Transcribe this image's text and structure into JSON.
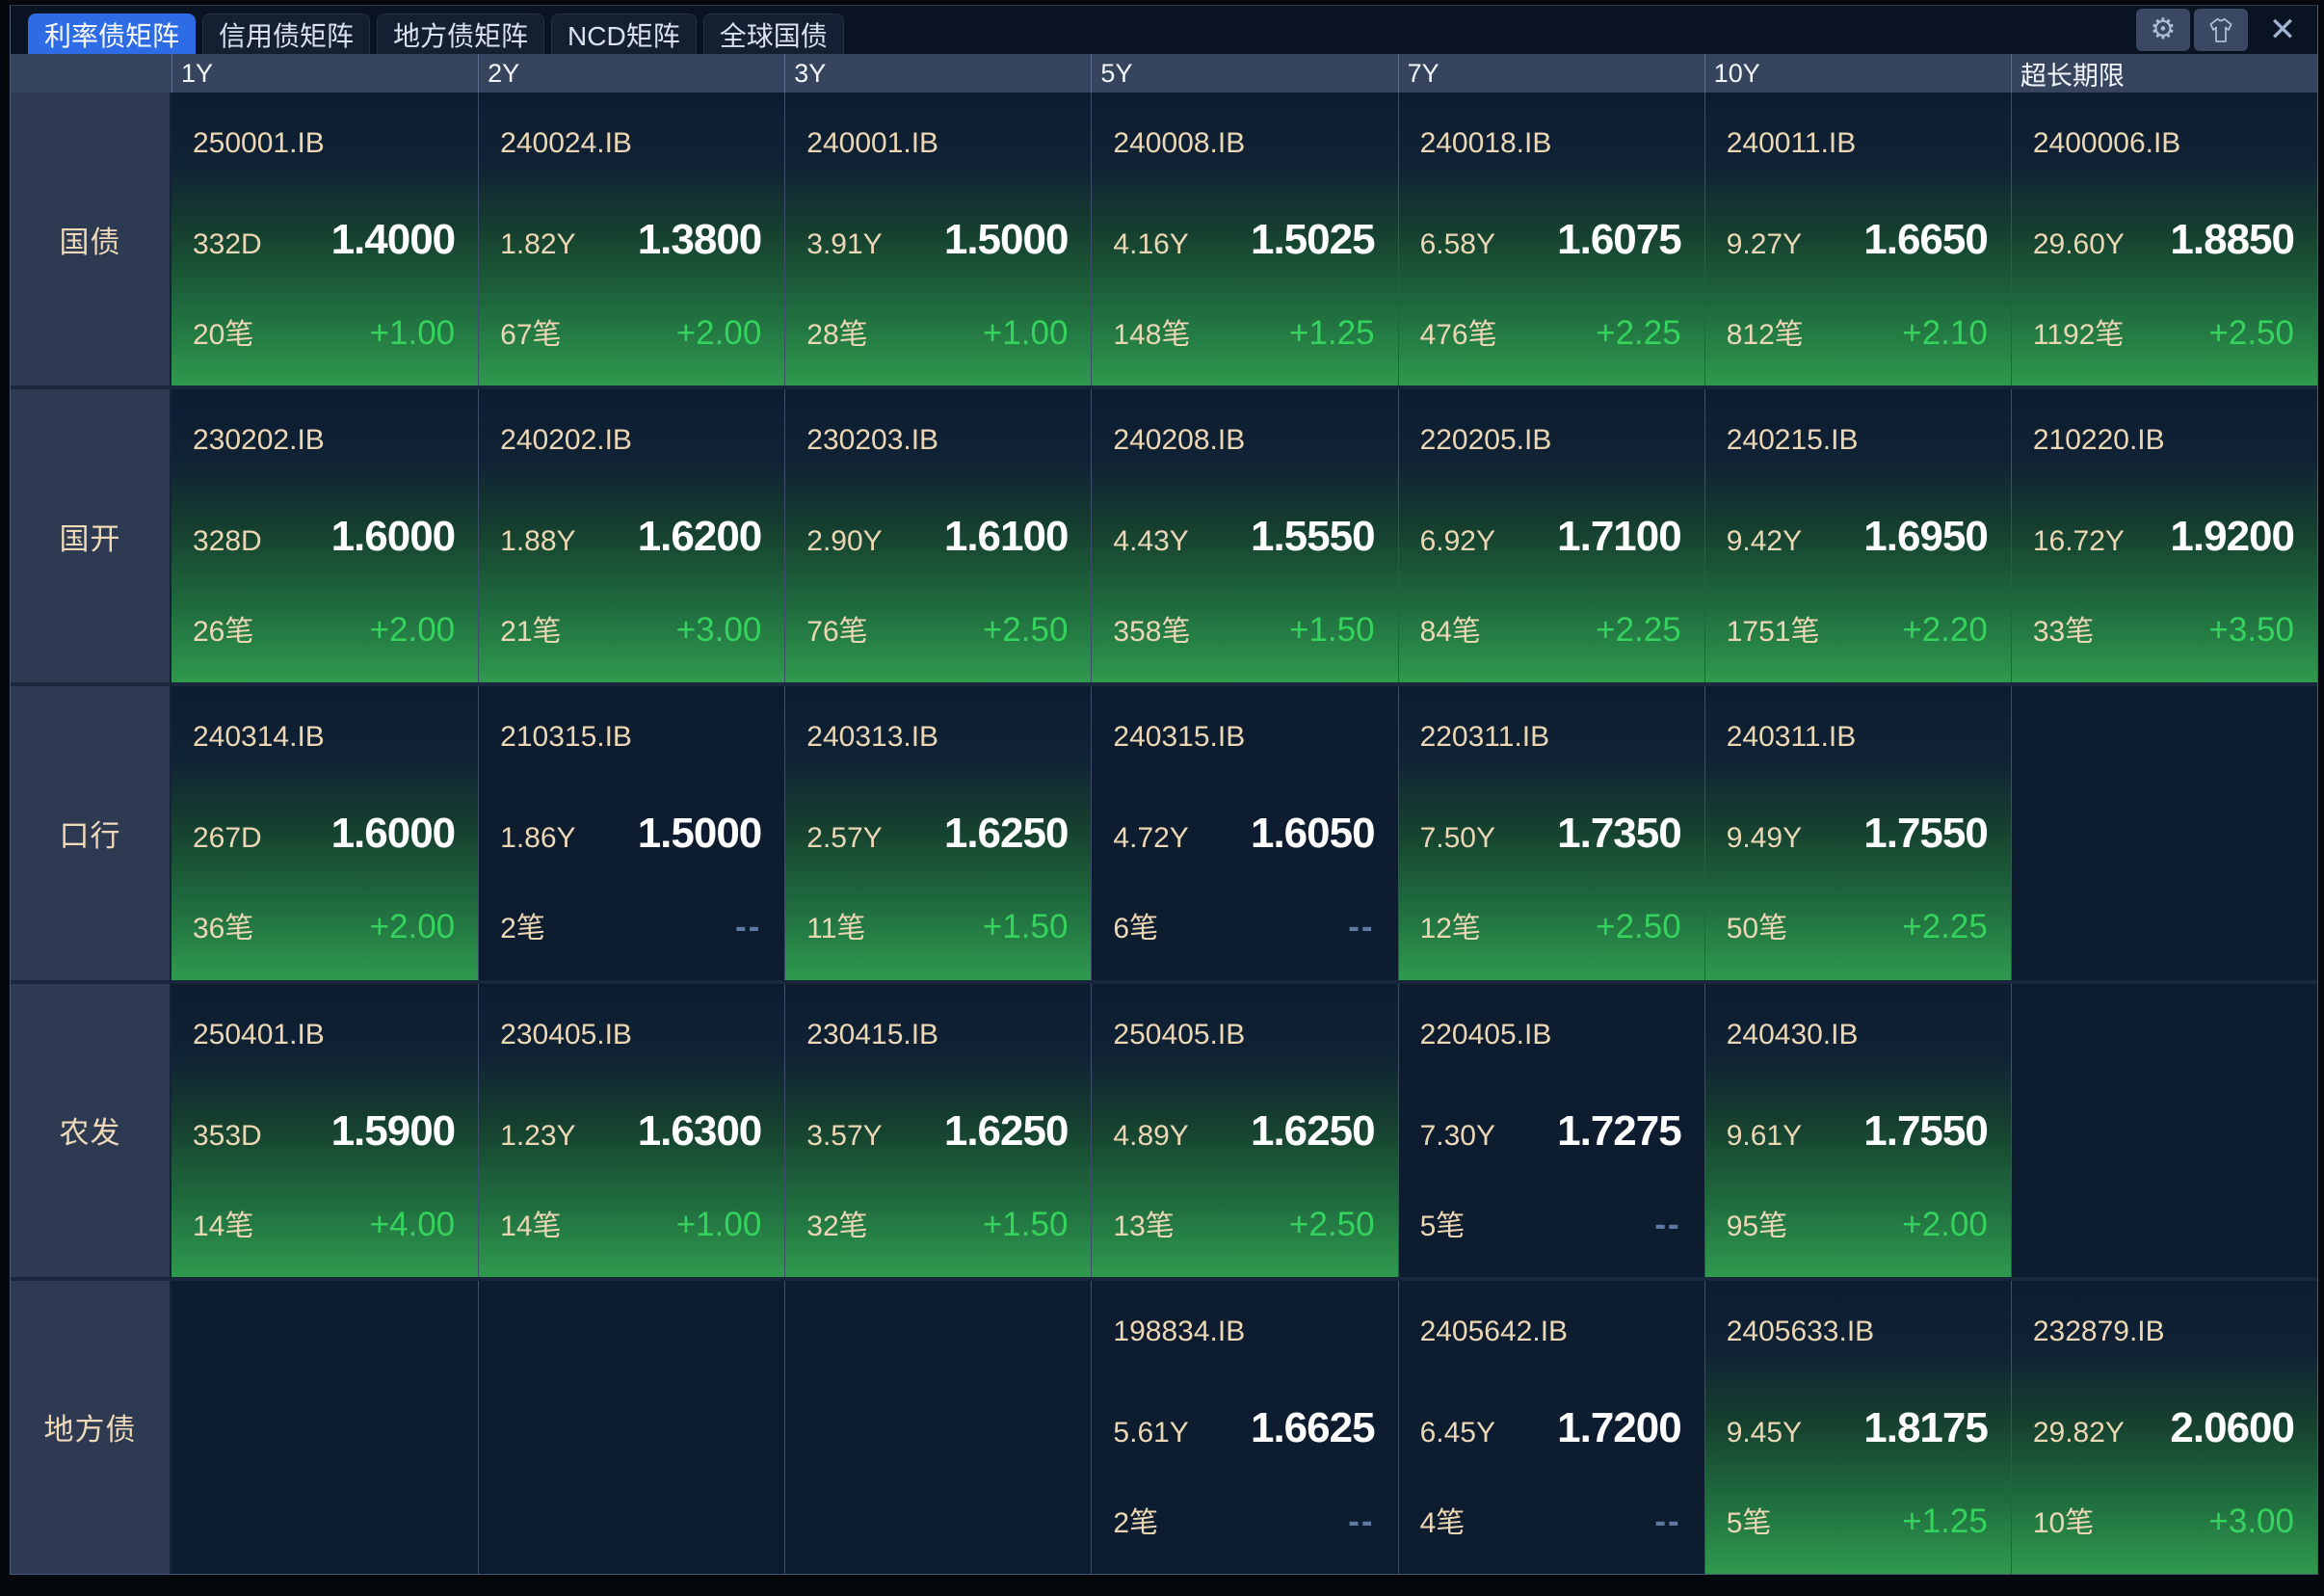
{
  "tab_bar": {
    "tabs": [
      {
        "label": "利率债矩阵",
        "active": true
      },
      {
        "label": "信用债矩阵",
        "active": false
      },
      {
        "label": "地方债矩阵",
        "active": false
      },
      {
        "label": "NCD矩阵",
        "active": false
      },
      {
        "label": "全球国债",
        "active": false
      }
    ],
    "icons": {
      "settings_glyph": "⚙",
      "close_glyph": "✕"
    }
  },
  "header": {
    "columns": [
      "1Y",
      "2Y",
      "3Y",
      "5Y",
      "7Y",
      "10Y",
      "超长期限"
    ]
  },
  "matrix": {
    "rows": [
      {
        "label": "国债",
        "cells": [
          {
            "code": "250001.IB",
            "tenor": "332D",
            "yield": "1.4000",
            "count": "20笔",
            "change": "+1.00"
          },
          {
            "code": "240024.IB",
            "tenor": "1.82Y",
            "yield": "1.3800",
            "count": "67笔",
            "change": "+2.00"
          },
          {
            "code": "240001.IB",
            "tenor": "3.91Y",
            "yield": "1.5000",
            "count": "28笔",
            "change": "+1.00"
          },
          {
            "code": "240008.IB",
            "tenor": "4.16Y",
            "yield": "1.5025",
            "count": "148笔",
            "change": "+1.25"
          },
          {
            "code": "240018.IB",
            "tenor": "6.58Y",
            "yield": "1.6075",
            "count": "476笔",
            "change": "+2.25"
          },
          {
            "code": "240011.IB",
            "tenor": "9.27Y",
            "yield": "1.6650",
            "count": "812笔",
            "change": "+2.10"
          },
          {
            "code": "2400006.IB",
            "tenor": "29.60Y",
            "yield": "1.8850",
            "count": "1192笔",
            "change": "+2.50"
          }
        ]
      },
      {
        "label": "国开",
        "cells": [
          {
            "code": "230202.IB",
            "tenor": "328D",
            "yield": "1.6000",
            "count": "26笔",
            "change": "+2.00"
          },
          {
            "code": "240202.IB",
            "tenor": "1.88Y",
            "yield": "1.6200",
            "count": "21笔",
            "change": "+3.00"
          },
          {
            "code": "230203.IB",
            "tenor": "2.90Y",
            "yield": "1.6100",
            "count": "76笔",
            "change": "+2.50"
          },
          {
            "code": "240208.IB",
            "tenor": "4.43Y",
            "yield": "1.5550",
            "count": "358笔",
            "change": "+1.50"
          },
          {
            "code": "220205.IB",
            "tenor": "6.92Y",
            "yield": "1.7100",
            "count": "84笔",
            "change": "+2.25"
          },
          {
            "code": "240215.IB",
            "tenor": "9.42Y",
            "yield": "1.6950",
            "count": "1751笔",
            "change": "+2.20"
          },
          {
            "code": "210220.IB",
            "tenor": "16.72Y",
            "yield": "1.9200",
            "count": "33笔",
            "change": "+3.50"
          }
        ]
      },
      {
        "label": "口行",
        "cells": [
          {
            "code": "240314.IB",
            "tenor": "267D",
            "yield": "1.6000",
            "count": "36笔",
            "change": "+2.00"
          },
          {
            "code": "210315.IB",
            "tenor": "1.86Y",
            "yield": "1.5000",
            "count": "2笔",
            "change": "--"
          },
          {
            "code": "240313.IB",
            "tenor": "2.57Y",
            "yield": "1.6250",
            "count": "11笔",
            "change": "+1.50"
          },
          {
            "code": "240315.IB",
            "tenor": "4.72Y",
            "yield": "1.6050",
            "count": "6笔",
            "change": "--"
          },
          {
            "code": "220311.IB",
            "tenor": "7.50Y",
            "yield": "1.7350",
            "count": "12笔",
            "change": "+2.50"
          },
          {
            "code": "240311.IB",
            "tenor": "9.49Y",
            "yield": "1.7550",
            "count": "50笔",
            "change": "+2.25"
          },
          null
        ]
      },
      {
        "label": "农发",
        "cells": [
          {
            "code": "250401.IB",
            "tenor": "353D",
            "yield": "1.5900",
            "count": "14笔",
            "change": "+4.00"
          },
          {
            "code": "230405.IB",
            "tenor": "1.23Y",
            "yield": "1.6300",
            "count": "14笔",
            "change": "+1.00"
          },
          {
            "code": "230415.IB",
            "tenor": "3.57Y",
            "yield": "1.6250",
            "count": "32笔",
            "change": "+1.50"
          },
          {
            "code": "250405.IB",
            "tenor": "4.89Y",
            "yield": "1.6250",
            "count": "13笔",
            "change": "+2.50"
          },
          {
            "code": "220405.IB",
            "tenor": "7.30Y",
            "yield": "1.7275",
            "count": "5笔",
            "change": "--"
          },
          {
            "code": "240430.IB",
            "tenor": "9.61Y",
            "yield": "1.7550",
            "count": "95笔",
            "change": "+2.00"
          },
          null
        ]
      },
      {
        "label": "地方债",
        "cells": [
          null,
          null,
          null,
          {
            "code": "198834.IB",
            "tenor": "5.61Y",
            "yield": "1.6625",
            "count": "2笔",
            "change": "--"
          },
          {
            "code": "2405642.IB",
            "tenor": "6.45Y",
            "yield": "1.7200",
            "count": "4笔",
            "change": "--"
          },
          {
            "code": "2405633.IB",
            "tenor": "9.45Y",
            "yield": "1.8175",
            "count": "5笔",
            "change": "+1.25"
          },
          {
            "code": "232879.IB",
            "tenor": "29.82Y",
            "yield": "2.0600",
            "count": "10笔",
            "change": "+3.00"
          }
        ]
      }
    ]
  },
  "colors": {
    "active_tab_blue": "#2e6ce5",
    "cell_dark_navy": "#0e1c30",
    "traded_green_bottom": "#2f9a4e",
    "label_slate": "#2e3a52",
    "header_slate": "#37445d",
    "tan_text": "#ecd7b5",
    "change_green": "#35d35e",
    "no_change_dash": "#5f77a3"
  }
}
